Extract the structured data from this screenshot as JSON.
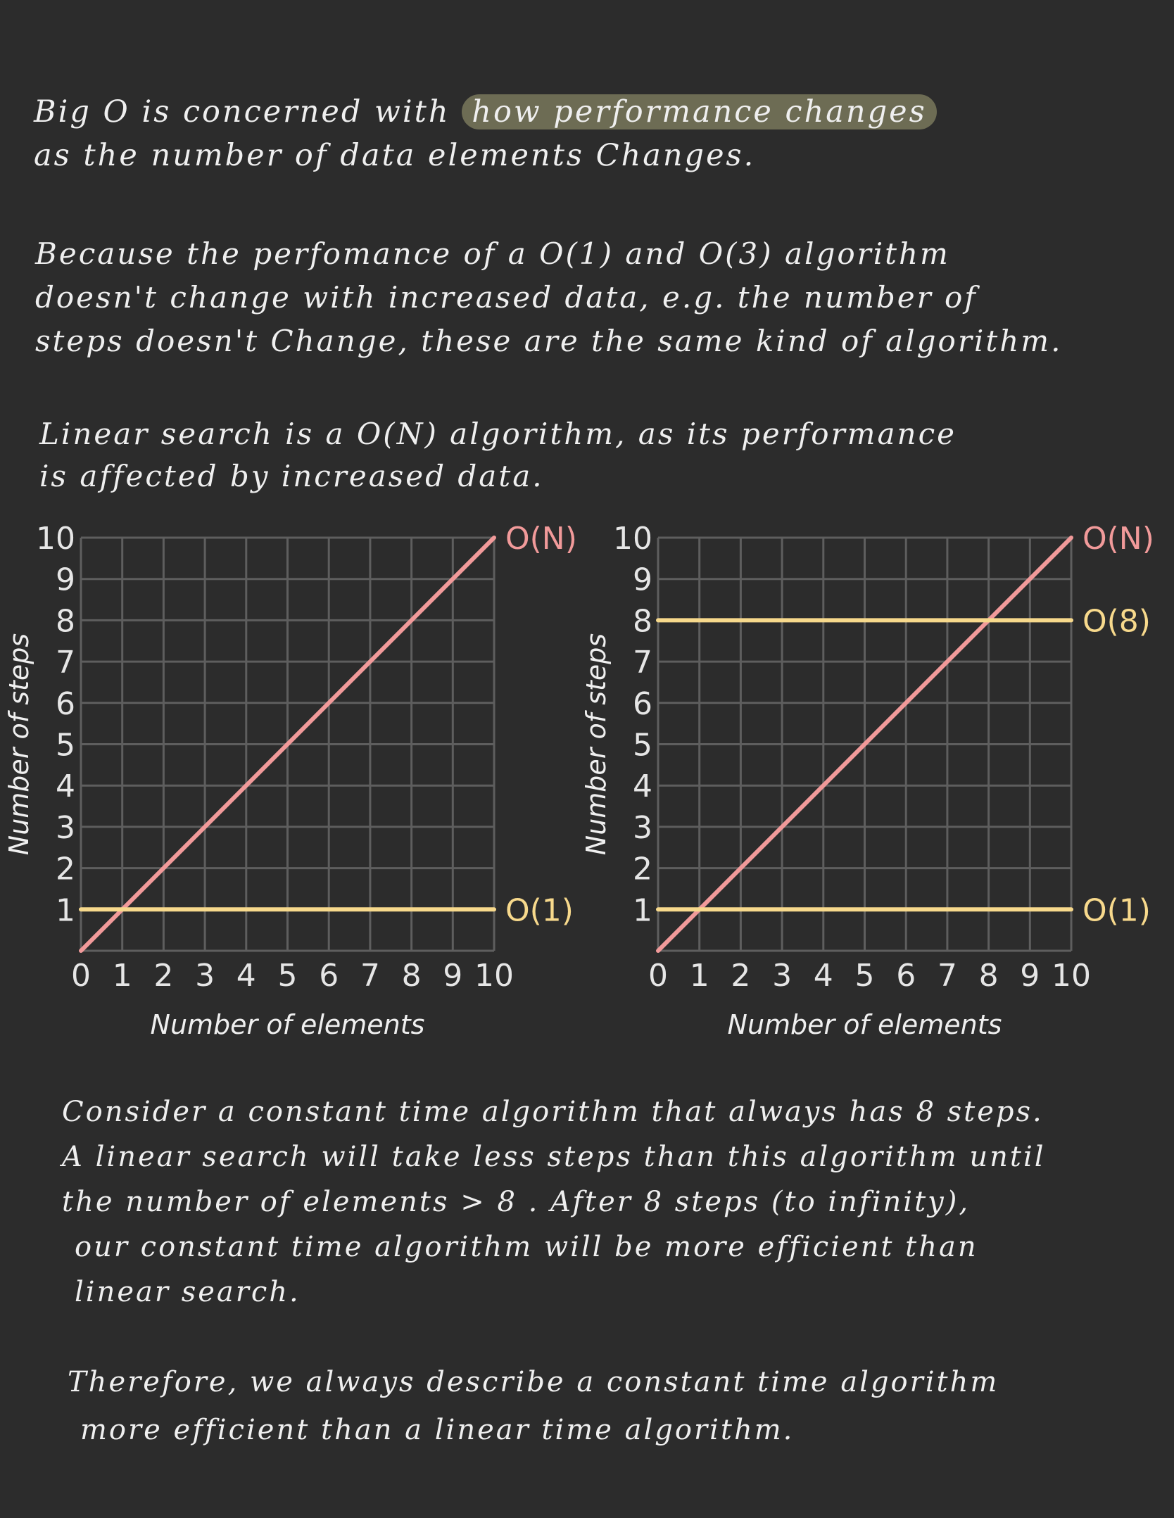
{
  "intro": {
    "line1_before": "Big O is concerned with",
    "line1_highlight": "how performance changes",
    "line2": "as the number of data elements Changes."
  },
  "paragraph_constant": {
    "line1": "Because the perfomance of a O(1) and O(3) algorithm",
    "line2": "doesn't change with increased data, e.g. the number of",
    "line3": "steps doesn't Change, these are the same kind of algorithm."
  },
  "paragraph_linear": {
    "line1": "Linear search is a O(N) algorithm, as its performance",
    "line2": "is affected by increased data."
  },
  "chart_data": [
    {
      "type": "line",
      "xlabel": "Number of elements",
      "ylabel": "Number of steps",
      "xlim": [
        0,
        10
      ],
      "ylim": [
        0,
        10
      ],
      "x_ticks": [
        "0",
        "1",
        "2",
        "3",
        "4",
        "5",
        "6",
        "7",
        "8",
        "9",
        "10"
      ],
      "y_ticks": [
        "1",
        "2",
        "3",
        "4",
        "5",
        "6",
        "7",
        "8",
        "9",
        "10"
      ],
      "grid": true,
      "series": [
        {
          "name": "O(N)",
          "color": "#f19a9a",
          "x": [
            0,
            10
          ],
          "y": [
            0,
            10
          ]
        },
        {
          "name": "O(1)",
          "color": "#f7d98c",
          "x": [
            0,
            10
          ],
          "y": [
            1,
            1
          ]
        }
      ]
    },
    {
      "type": "line",
      "xlabel": "Number of elements",
      "ylabel": "Number of steps",
      "xlim": [
        0,
        10
      ],
      "ylim": [
        0,
        10
      ],
      "x_ticks": [
        "0",
        "1",
        "2",
        "3",
        "4",
        "5",
        "6",
        "7",
        "8",
        "9",
        "10"
      ],
      "y_ticks": [
        "1",
        "2",
        "3",
        "4",
        "5",
        "6",
        "7",
        "8",
        "9",
        "10"
      ],
      "grid": true,
      "series": [
        {
          "name": "O(N)",
          "color": "#f19a9a",
          "x": [
            0,
            10
          ],
          "y": [
            0,
            10
          ]
        },
        {
          "name": "O(8)",
          "color": "#f7d98c",
          "x": [
            0,
            10
          ],
          "y": [
            8,
            8
          ]
        },
        {
          "name": "O(1)",
          "color": "#f7d98c",
          "x": [
            0,
            10
          ],
          "y": [
            1,
            1
          ]
        }
      ]
    }
  ],
  "paragraph_consider": {
    "line1": "Consider a constant time algorithm that always has 8 steps.",
    "line2": "A linear search will take less steps than this algorithm until",
    "line3": "the number of elements > 8 . After 8 steps (to infinity),",
    "line4": "our constant time algorithm will be more efficient than",
    "line5": "linear search."
  },
  "paragraph_therefore": {
    "line1": "Therefore, we always describe a constant time algorithm",
    "line2": "more efficient than a linear time algorithm."
  },
  "colors": {
    "background": "#2c2c2c",
    "text": "#efefef",
    "highlight": "#6d6c54",
    "grid": "#5e5e5e",
    "linear": "#f19a9a",
    "constant": "#f7d98c"
  }
}
